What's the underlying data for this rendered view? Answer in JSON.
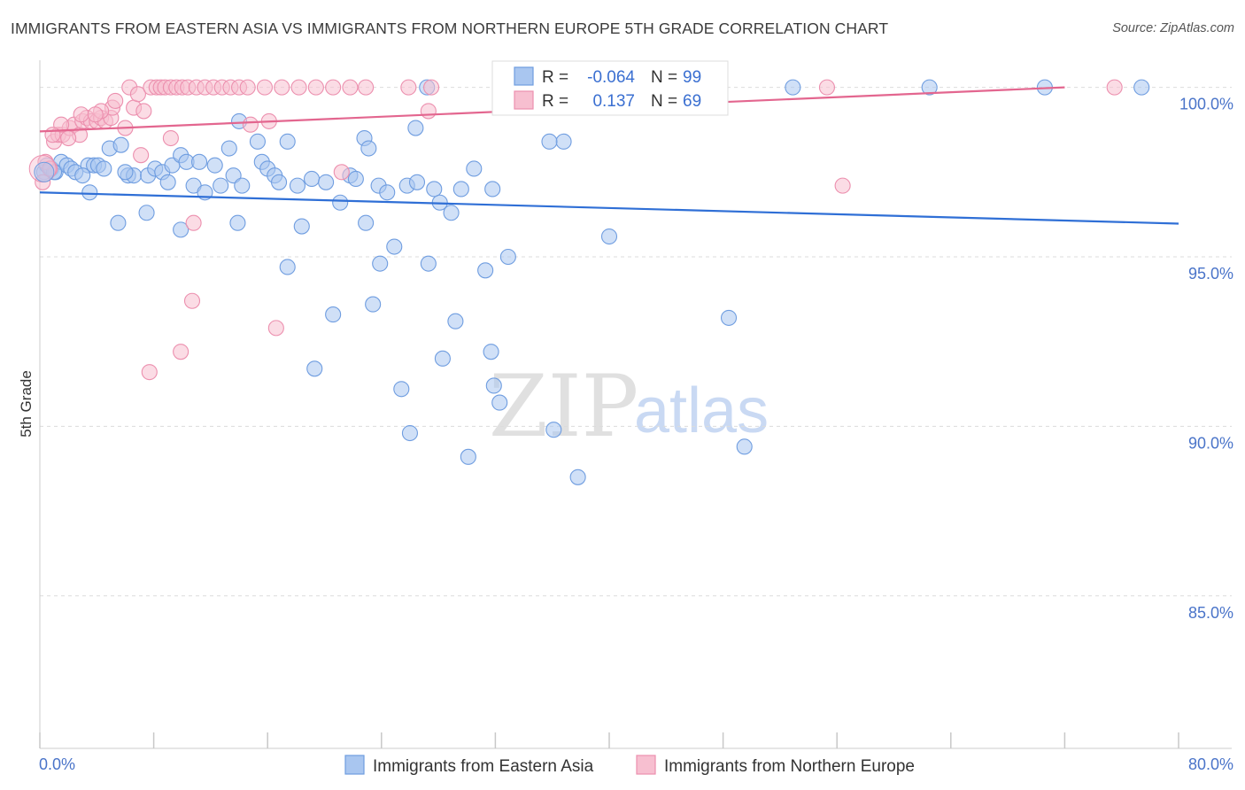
{
  "title": "IMMIGRANTS FROM EASTERN ASIA VS IMMIGRANTS FROM NORTHERN EUROPE 5TH GRADE CORRELATION CHART",
  "source": "Source: ZipAtlas.com",
  "watermark": {
    "zip": "ZIP",
    "atlas": "atlas"
  },
  "colors": {
    "blue_fill": "#a9c6f0",
    "blue_stroke": "#6f9de0",
    "blue_line": "#2f6fd6",
    "pink_fill": "#f7bfd0",
    "pink_stroke": "#ec8fae",
    "pink_line": "#e3668f",
    "tick_text": "#4a74c9",
    "grid": "#dcdcdc"
  },
  "stats": [
    {
      "r_label": "R =",
      "r_value": "-0.064",
      "n_label": "N =",
      "n_value": "99",
      "series": "blue"
    },
    {
      "r_label": "R =",
      "r_value": "0.137",
      "n_label": "N =",
      "n_value": "69",
      "series": "pink"
    }
  ],
  "chart_data": {
    "type": "scatter",
    "title": "IMMIGRANTS FROM EASTERN ASIA VS IMMIGRANTS FROM NORTHERN EUROPE 5TH GRADE CORRELATION CHART",
    "xlabel": "",
    "ylabel": "5th Grade",
    "xlim": [
      0,
      80
    ],
    "ylim": [
      80.5,
      100.8
    ],
    "x_tick_labels": [
      "0.0%",
      "80.0%"
    ],
    "x_tick_values": [
      0,
      80
    ],
    "x_minor_ticks": [
      0,
      8,
      16,
      24,
      32,
      40,
      48,
      56,
      64,
      72,
      80
    ],
    "y_tick_labels": [
      "100.0%",
      "95.0%",
      "90.0%",
      "85.0%"
    ],
    "y_tick_values": [
      100,
      95,
      90,
      85
    ],
    "grid": true,
    "legend_position": "bottom-center",
    "series": [
      {
        "name": "Immigrants from Eastern Asia",
        "color": "blue",
        "trend": {
          "x": [
            0,
            80
          ],
          "y": [
            96.9,
            95.98
          ]
        },
        "points": [
          [
            0.3,
            97.5
          ],
          [
            0.5,
            97.7
          ],
          [
            0.8,
            97.6
          ],
          [
            1.1,
            97.5
          ],
          [
            1.5,
            97.8
          ],
          [
            1.9,
            97.7
          ],
          [
            2.2,
            97.6
          ],
          [
            3.4,
            97.7
          ],
          [
            3.8,
            97.7
          ],
          [
            4.1,
            97.7
          ],
          [
            4.9,
            98.2
          ],
          [
            5.7,
            98.3
          ],
          [
            6.2,
            97.4
          ],
          [
            6.6,
            97.4
          ],
          [
            7.6,
            97.4
          ],
          [
            8.1,
            97.6
          ],
          [
            8.6,
            97.5
          ],
          [
            9.0,
            97.2
          ],
          [
            9.3,
            97.7
          ],
          [
            9.9,
            98.0
          ],
          [
            10.3,
            97.8
          ],
          [
            10.8,
            97.1
          ],
          [
            11.2,
            97.8
          ],
          [
            11.6,
            96.9
          ],
          [
            12.3,
            97.7
          ],
          [
            12.7,
            97.1
          ],
          [
            13.3,
            98.2
          ],
          [
            13.6,
            97.4
          ],
          [
            14.2,
            97.1
          ],
          [
            15.3,
            98.4
          ],
          [
            15.6,
            97.8
          ],
          [
            16.0,
            97.6
          ],
          [
            16.5,
            97.4
          ],
          [
            16.8,
            97.2
          ],
          [
            17.4,
            98.4
          ],
          [
            18.1,
            97.1
          ],
          [
            19.1,
            97.3
          ],
          [
            20.1,
            97.2
          ],
          [
            21.1,
            96.6
          ],
          [
            21.8,
            97.4
          ],
          [
            22.2,
            97.3
          ],
          [
            22.8,
            98.5
          ],
          [
            23.1,
            98.2
          ],
          [
            23.8,
            97.1
          ],
          [
            24.4,
            96.9
          ],
          [
            25.8,
            97.1
          ],
          [
            26.4,
            98.8
          ],
          [
            27.7,
            97.0
          ],
          [
            28.1,
            96.6
          ],
          [
            28.9,
            96.3
          ],
          [
            29.6,
            97.0
          ],
          [
            30.5,
            97.6
          ],
          [
            31.8,
            97.0
          ],
          [
            36.8,
            98.4
          ],
          [
            14.0,
            99.0
          ],
          [
            27.2,
            100.0
          ],
          [
            36.9,
            100.0
          ],
          [
            41.0,
            100.0
          ],
          [
            43.0,
            100.0
          ],
          [
            52.9,
            100.0
          ],
          [
            62.5,
            100.0
          ],
          [
            70.6,
            100.0
          ],
          [
            77.4,
            100.0
          ],
          [
            3.5,
            96.9
          ],
          [
            5.5,
            96.0
          ],
          [
            7.5,
            96.3
          ],
          [
            9.9,
            95.8
          ],
          [
            13.9,
            96.0
          ],
          [
            18.4,
            95.9
          ],
          [
            22.9,
            96.0
          ],
          [
            40.0,
            95.6
          ],
          [
            17.4,
            94.7
          ],
          [
            23.9,
            94.8
          ],
          [
            24.9,
            95.3
          ],
          [
            27.3,
            94.8
          ],
          [
            31.3,
            94.6
          ],
          [
            32.9,
            95.0
          ],
          [
            20.6,
            93.3
          ],
          [
            23.4,
            93.6
          ],
          [
            29.2,
            93.1
          ],
          [
            48.4,
            93.2
          ],
          [
            28.3,
            92.0
          ],
          [
            19.3,
            91.7
          ],
          [
            31.7,
            92.2
          ],
          [
            25.4,
            91.1
          ],
          [
            31.9,
            91.2
          ],
          [
            32.3,
            90.7
          ],
          [
            26.0,
            89.8
          ],
          [
            30.1,
            89.1
          ],
          [
            36.1,
            89.9
          ],
          [
            37.8,
            88.5
          ],
          [
            49.5,
            89.4
          ],
          [
            2.5,
            97.5
          ],
          [
            6.0,
            97.5
          ],
          [
            1.0,
            97.5
          ],
          [
            4.5,
            97.6
          ],
          [
            26.5,
            97.2
          ],
          [
            35.8,
            98.4
          ],
          [
            3.0,
            97.4
          ]
        ]
      },
      {
        "name": "Immigrants from Northern Europe",
        "color": "pink",
        "trend": {
          "x": [
            0,
            72
          ],
          "y": [
            98.7,
            100.0
          ]
        },
        "points": [
          [
            0.2,
            97.2
          ],
          [
            0.4,
            97.8
          ],
          [
            0.7,
            97.6
          ],
          [
            1.0,
            98.4
          ],
          [
            1.3,
            98.6
          ],
          [
            1.6,
            98.6
          ],
          [
            2.1,
            98.8
          ],
          [
            2.4,
            98.9
          ],
          [
            2.8,
            98.6
          ],
          [
            3.0,
            99.0
          ],
          [
            3.3,
            99.1
          ],
          [
            3.6,
            99.0
          ],
          [
            4.0,
            99.0
          ],
          [
            4.3,
            99.1
          ],
          [
            4.6,
            99.0
          ],
          [
            5.0,
            99.1
          ],
          [
            5.1,
            99.4
          ],
          [
            5.3,
            99.6
          ],
          [
            6.0,
            98.8
          ],
          [
            6.3,
            100.0
          ],
          [
            6.6,
            99.4
          ],
          [
            6.9,
            99.8
          ],
          [
            7.3,
            99.3
          ],
          [
            7.8,
            100.0
          ],
          [
            8.2,
            100.0
          ],
          [
            8.5,
            100.0
          ],
          [
            8.8,
            100.0
          ],
          [
            9.2,
            100.0
          ],
          [
            9.6,
            100.0
          ],
          [
            10.0,
            100.0
          ],
          [
            10.4,
            100.0
          ],
          [
            11.0,
            100.0
          ],
          [
            11.6,
            100.0
          ],
          [
            12.2,
            100.0
          ],
          [
            12.8,
            100.0
          ],
          [
            13.4,
            100.0
          ],
          [
            14.0,
            100.0
          ],
          [
            14.6,
            100.0
          ],
          [
            15.8,
            100.0
          ],
          [
            17.0,
            100.0
          ],
          [
            18.2,
            100.0
          ],
          [
            19.4,
            100.0
          ],
          [
            20.6,
            100.0
          ],
          [
            21.8,
            100.0
          ],
          [
            25.9,
            100.0
          ],
          [
            27.5,
            100.0
          ],
          [
            33.4,
            100.0
          ],
          [
            37.8,
            100.0
          ],
          [
            55.3,
            100.0
          ],
          [
            75.5,
            100.0
          ],
          [
            22.9,
            100.0
          ],
          [
            14.8,
            98.9
          ],
          [
            16.1,
            99.0
          ],
          [
            9.2,
            98.5
          ],
          [
            27.3,
            99.3
          ],
          [
            21.2,
            97.5
          ],
          [
            7.1,
            98.0
          ],
          [
            10.8,
            96.0
          ],
          [
            56.4,
            97.1
          ],
          [
            10.7,
            93.7
          ],
          [
            16.6,
            92.9
          ],
          [
            9.9,
            92.2
          ],
          [
            7.7,
            91.6
          ],
          [
            2.9,
            99.2
          ],
          [
            1.5,
            98.9
          ],
          [
            0.9,
            98.6
          ],
          [
            4.3,
            99.3
          ],
          [
            2.0,
            98.5
          ],
          [
            3.9,
            99.2
          ]
        ]
      }
    ]
  },
  "legend": [
    {
      "label": "Immigrants from Eastern Asia",
      "color": "blue"
    },
    {
      "label": "Immigrants from Northern Europe",
      "color": "pink"
    }
  ]
}
